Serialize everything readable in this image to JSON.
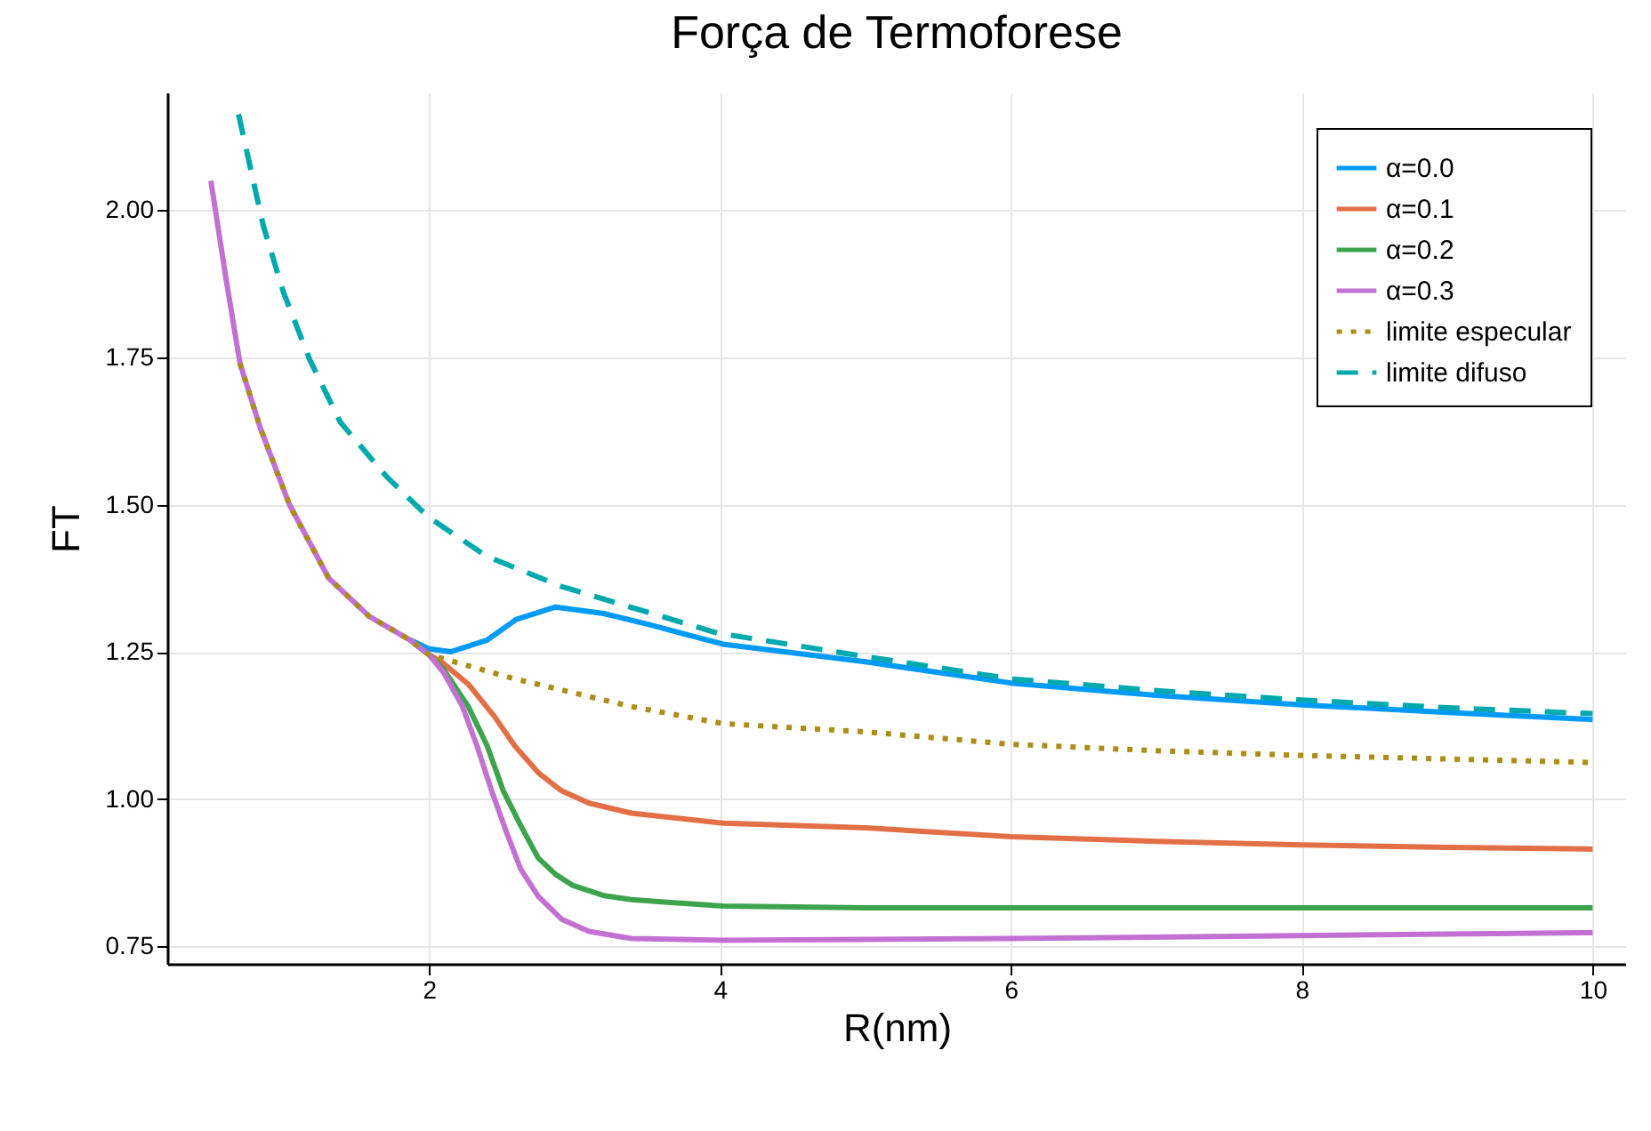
{
  "chart_data": {
    "type": "line",
    "title": "Força de Termoforese",
    "xlabel": "R(nm)",
    "ylabel": "FT",
    "xlim": [
      0.2,
      10.23
    ],
    "ylim": [
      0.72,
      2.2
    ],
    "xticks": [
      2,
      4,
      6,
      8,
      10
    ],
    "yticks": [
      {
        "value": 0.75,
        "label": "0.75"
      },
      {
        "value": 1,
        "label": "1.00"
      },
      {
        "value": 1.25,
        "label": "1.25"
      },
      {
        "value": 1.5,
        "label": "1.50"
      },
      {
        "value": 1.75,
        "label": "1.75"
      },
      {
        "value": 2,
        "label": "2.00"
      }
    ],
    "grid": true,
    "legend": "top right",
    "line_style": "solid",
    "series": [
      {
        "name": "α=0.0",
        "color": "#009af9",
        "x": [
          1.87,
          2.0,
          2.15,
          2.4,
          2.6,
          2.87,
          3.2,
          3.5,
          4.02,
          5,
          6,
          7,
          8,
          9,
          10
        ],
        "values": [
          1.27,
          1.255,
          1.25,
          1.27,
          1.305,
          1.326,
          1.315,
          1.297,
          1.263,
          1.233,
          1.197,
          1.176,
          1.16,
          1.147,
          1.135
        ]
      },
      {
        "name": "α=0.1",
        "color": "#e26f46",
        "x": [
          1.87,
          2.0,
          2.1,
          2.27,
          2.45,
          2.59,
          2.75,
          2.91,
          3.1,
          3.39,
          4.02,
          5,
          6,
          7,
          8,
          9,
          10
        ],
        "values": [
          1.27,
          1.245,
          1.23,
          1.195,
          1.14,
          1.09,
          1.045,
          1.014,
          0.993,
          0.976,
          0.959,
          0.951,
          0.936,
          0.928,
          0.922,
          0.918,
          0.915
        ]
      },
      {
        "name": "α=0.2",
        "color": "#3da44d",
        "x": [
          1.87,
          2.0,
          2.1,
          2.27,
          2.4,
          2.51,
          2.63,
          2.75,
          2.87,
          2.99,
          3.2,
          3.39,
          4.02,
          5,
          6,
          7,
          8,
          9,
          10
        ],
        "values": [
          1.27,
          1.245,
          1.22,
          1.157,
          1.09,
          1.014,
          0.955,
          0.9,
          0.872,
          0.853,
          0.836,
          0.829,
          0.818,
          0.815,
          0.815,
          0.815,
          0.815,
          0.815,
          0.815
        ]
      },
      {
        "name": "α=0.3",
        "color": "#c271d2",
        "x": [
          0.5,
          0.6,
          0.7,
          0.84,
          1.04,
          1.31,
          1.59,
          1.87,
          2.0,
          2.1,
          2.23,
          2.33,
          2.43,
          2.53,
          2.63,
          2.75,
          2.91,
          3.1,
          3.39,
          4.02,
          6,
          8,
          10
        ],
        "values": [
          2.05,
          1.89,
          1.74,
          1.63,
          1.5,
          1.375,
          1.31,
          1.27,
          1.245,
          1.215,
          1.157,
          1.09,
          1.014,
          0.945,
          0.881,
          0.835,
          0.796,
          0.775,
          0.763,
          0.76,
          0.763,
          0.768,
          0.773
        ]
      },
      {
        "name": "limite especular",
        "color": "#ac8d18",
        "line_style": "dotted",
        "x": [
          0.7,
          0.84,
          1.04,
          1.31,
          1.59,
          1.87,
          2.0,
          2.59,
          3.0,
          3.39,
          4.02,
          5,
          6,
          7,
          8,
          9,
          10
        ],
        "values": [
          1.74,
          1.63,
          1.5,
          1.375,
          1.31,
          1.27,
          1.245,
          1.204,
          1.18,
          1.157,
          1.128,
          1.114,
          1.093,
          1.082,
          1.074,
          1.068,
          1.062
        ]
      },
      {
        "name": "limite difuso",
        "color": "#00a9ad",
        "line_style": "dashed",
        "x": [
          0.69,
          0.86,
          1.0,
          1.18,
          1.39,
          1.71,
          1.99,
          2.39,
          2.91,
          3.98,
          5,
          6,
          7,
          8,
          9,
          10
        ],
        "values": [
          2.163,
          1.974,
          1.86,
          1.746,
          1.64,
          1.547,
          1.48,
          1.413,
          1.361,
          1.282,
          1.242,
          1.204,
          1.184,
          1.168,
          1.155,
          1.145
        ]
      }
    ]
  }
}
